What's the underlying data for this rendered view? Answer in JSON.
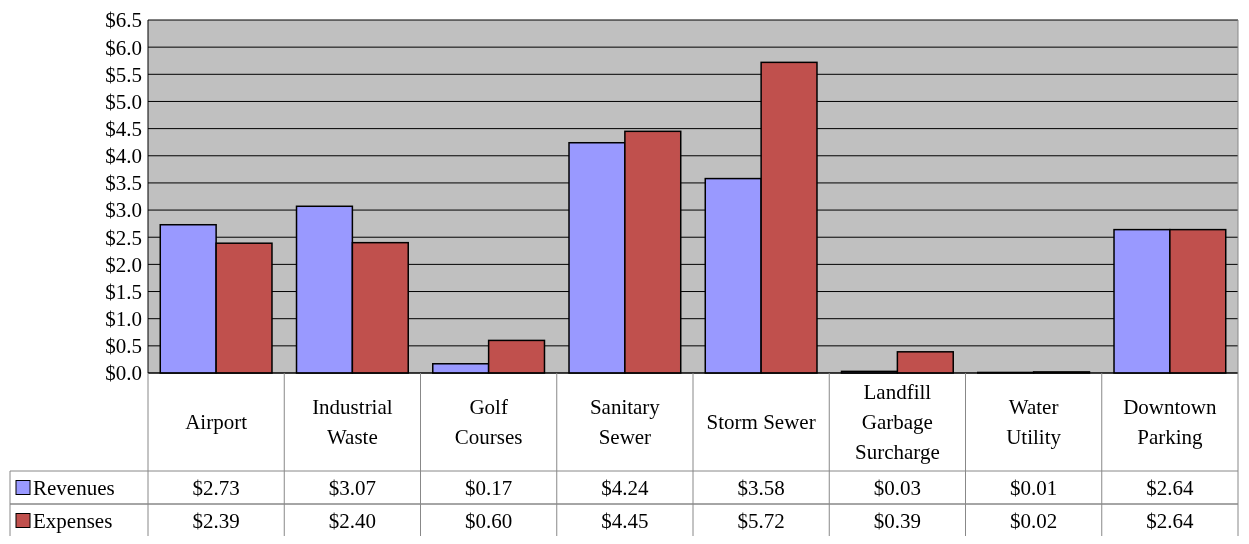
{
  "chart_data": {
    "type": "bar",
    "categories": [
      "Airport",
      "Industrial Waste",
      "Golf Courses",
      "Sanitary Sewer",
      "Storm Sewer",
      "Landfill Garbage Surcharge",
      "Water Utility",
      "Downtown Parking"
    ],
    "series": [
      {
        "name": "Revenues",
        "color": "#9999ff",
        "values": [
          2.73,
          3.07,
          0.17,
          4.24,
          3.58,
          0.03,
          0.01,
          2.64
        ],
        "value_labels": [
          "$2.73",
          "$3.07",
          "$0.17",
          "$4.24",
          "$3.58",
          "$0.03",
          "$0.01",
          "$2.64"
        ]
      },
      {
        "name": "Expenses",
        "color": "#c0504d",
        "values": [
          2.39,
          2.4,
          0.6,
          4.45,
          5.72,
          0.39,
          0.02,
          2.64
        ],
        "value_labels": [
          "$2.39",
          "$2.40",
          "$0.60",
          "$4.45",
          "$5.72",
          "$0.39",
          "$0.02",
          "$2.64"
        ]
      }
    ],
    "ylim": [
      0,
      6.5
    ],
    "yticks": [
      {
        "value": 0,
        "label": "$0.0"
      },
      {
        "value": 0.5,
        "label": "$0.5"
      },
      {
        "value": 1,
        "label": "$1.0"
      },
      {
        "value": 1.5,
        "label": "$1.5"
      },
      {
        "value": 2,
        "label": "$2.0"
      },
      {
        "value": 2.5,
        "label": "$2.5"
      },
      {
        "value": 3,
        "label": "$3.0"
      },
      {
        "value": 3.5,
        "label": "$3.5"
      },
      {
        "value": 4,
        "label": "$4.0"
      },
      {
        "value": 4.5,
        "label": "$4.5"
      },
      {
        "value": 5,
        "label": "$5.0"
      },
      {
        "value": 5.5,
        "label": "$5.5"
      },
      {
        "value": 6,
        "label": "$6.0"
      },
      {
        "value": 6.5,
        "label": "$6.5"
      }
    ],
    "grid": "y",
    "legend": "bottom"
  }
}
